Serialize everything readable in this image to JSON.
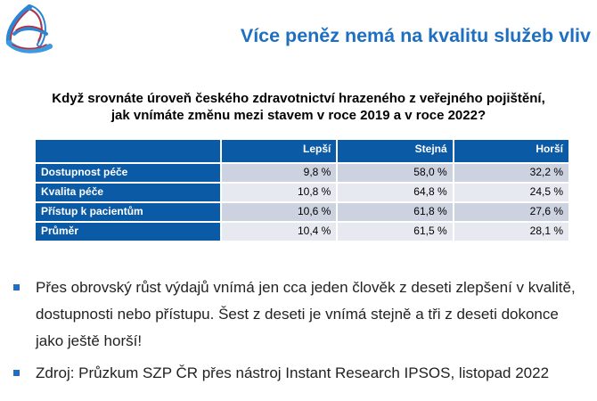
{
  "title": "Více peněz nemá na kvalitu služeb vliv",
  "question": {
    "line1": "Když srovnáte úroveň českého zdravotnictví hrazeného z veřejného pojištění,",
    "line2": "jak vnímáte změnu mezi stavem v roce 2019 a v roce 2022?"
  },
  "table": {
    "headers": [
      "",
      "Lepší",
      "Stejná",
      "Horší"
    ],
    "rows": [
      {
        "label": "Dostupnost péče",
        "values": [
          "9,8 %",
          "58,0 %",
          "32,2 %"
        ]
      },
      {
        "label": "Kvalita péče",
        "values": [
          "10,8 %",
          "64,8 %",
          "24,5 %"
        ]
      },
      {
        "label": "Přístup k pacientům",
        "values": [
          "10,6 %",
          "61,8 %",
          "27,6 %"
        ]
      },
      {
        "label": "Průměr",
        "values": [
          "10,4 %",
          "61,5 %",
          "28,1 %"
        ]
      }
    ]
  },
  "bullets": [
    "Přes obrovský růst výdajů vnímá jen cca jeden člověk z deseti zlepšení v kvalitě, dostupnosti nebo přístupu. Šest z deseti je vnímá stejně a tři z deseti dokonce jako ještě horší!",
    "Zdroj: Průzkum SZP ČR přes nástroj Instant Research IPSOS, listopad 2022"
  ],
  "colors": {
    "accent": "#1e6fc0",
    "header": "#0b5aa6",
    "row_dark": "#cdd2e0",
    "row_light": "#e7e9f0",
    "logo_red": "#d3232a"
  }
}
